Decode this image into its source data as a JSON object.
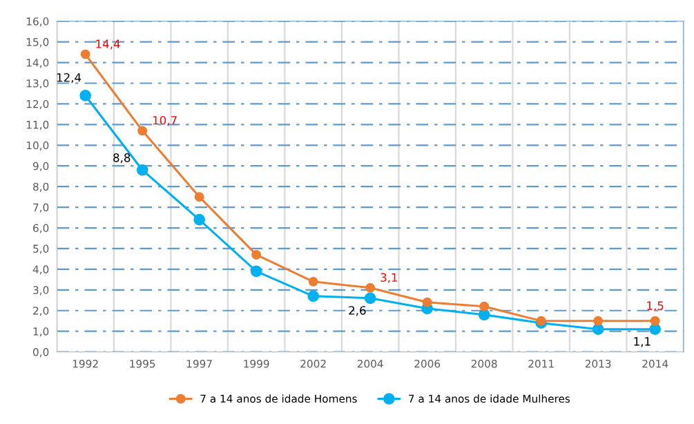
{
  "chart_data": {
    "type": "line",
    "categories": [
      "1992",
      "1995",
      "1997",
      "1999",
      "2002",
      "2004",
      "2006",
      "2008",
      "2011",
      "2013",
      "2014"
    ],
    "series": [
      {
        "name": "7 a 14 anos de idade Homens",
        "color": "#ed7d31",
        "values": [
          14.4,
          10.7,
          7.5,
          4.7,
          3.4,
          3.1,
          2.4,
          2.2,
          1.5,
          1.5,
          1.5
        ],
        "value_labels": [
          "14,4",
          "10,7",
          null,
          null,
          null,
          "3,1",
          null,
          null,
          null,
          null,
          "1,5"
        ]
      },
      {
        "name": "7 a 14 anos de idade Mulheres",
        "color": "#00b0f0",
        "values": [
          12.4,
          8.8,
          6.4,
          3.9,
          2.7,
          2.6,
          2.1,
          1.8,
          1.4,
          1.1,
          1.1
        ],
        "value_labels": [
          "12,4",
          "8,8",
          null,
          null,
          null,
          "2,6",
          null,
          null,
          null,
          null,
          "1,1"
        ]
      }
    ],
    "ylim": [
      0,
      16
    ],
    "yticks": [
      {
        "value": 0,
        "label": "0,0"
      },
      {
        "value": 1,
        "label": "1,0"
      },
      {
        "value": 2,
        "label": "2,0"
      },
      {
        "value": 3,
        "label": "3,0"
      },
      {
        "value": 4,
        "label": "4,0"
      },
      {
        "value": 5,
        "label": "5,0"
      },
      {
        "value": 6,
        "label": "6,0"
      },
      {
        "value": 7,
        "label": "7,0"
      },
      {
        "value": 8,
        "label": "8,0"
      },
      {
        "value": 9,
        "label": "9,0"
      },
      {
        "value": 10,
        "label": "10,0"
      },
      {
        "value": 11,
        "label": "11,0"
      },
      {
        "value": 12,
        "label": "12,0"
      },
      {
        "value": 13,
        "label": "13,0"
      },
      {
        "value": 14,
        "label": "14,0"
      },
      {
        "value": 15,
        "label": "15,0"
      },
      {
        "value": 16,
        "label": "16,0"
      }
    ],
    "grid": true,
    "legend": "bottom",
    "marker": "circle",
    "line_style": "solid"
  }
}
